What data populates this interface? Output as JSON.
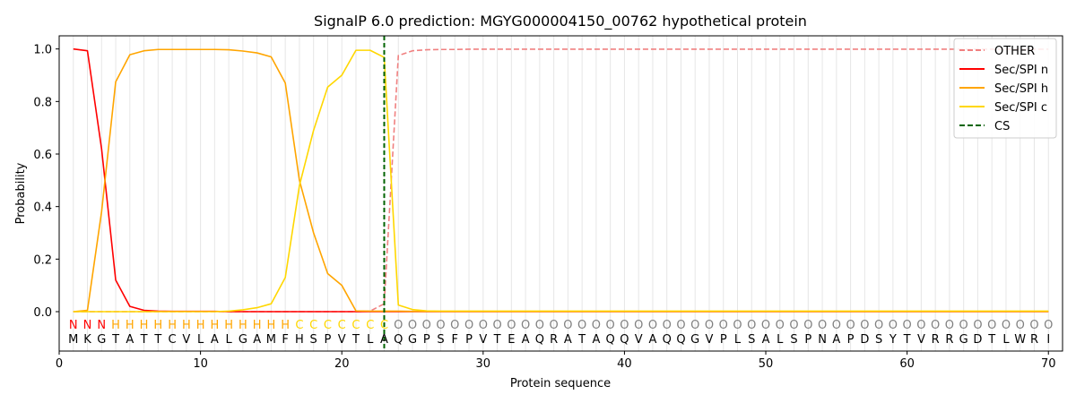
{
  "chart_data": {
    "type": "line",
    "title": "SignalP 6.0 prediction: MGYG000004150_00762 hypothetical protein",
    "xlabel": "Protein sequence",
    "ylabel": "Probability",
    "xlim": [
      0,
      71
    ],
    "ylim": [
      -0.15,
      1.05
    ],
    "xticks": [
      0,
      10,
      20,
      30,
      40,
      50,
      60,
      70
    ],
    "yticks": [
      0.0,
      0.2,
      0.4,
      0.6,
      0.8,
      1.0
    ],
    "grid": "vertical lines at each residue",
    "legend_position": "top-right",
    "sequence": [
      "M",
      "K",
      "G",
      "T",
      "A",
      "T",
      "T",
      "C",
      "V",
      "L",
      "A",
      "L",
      "G",
      "A",
      "M",
      "F",
      "H",
      "S",
      "P",
      "V",
      "T",
      "L",
      "A",
      "Q",
      "G",
      "P",
      "S",
      "F",
      "P",
      "V",
      "T",
      "E",
      "A",
      "Q",
      "R",
      "A",
      "T",
      "A",
      "Q",
      "Q",
      "V",
      "A",
      "Q",
      "Q",
      "G",
      "V",
      "P",
      "L",
      "S",
      "A",
      "L",
      "S",
      "P",
      "N",
      "A",
      "P",
      "D",
      "S",
      "Y",
      "T",
      "V",
      "R",
      "R",
      "G",
      "D",
      "T",
      "L",
      "W",
      "R",
      "I"
    ],
    "predicted_labels": [
      "N",
      "N",
      "N",
      "H",
      "H",
      "H",
      "H",
      "H",
      "H",
      "H",
      "H",
      "H",
      "H",
      "H",
      "H",
      "H",
      "C",
      "C",
      "C",
      "C",
      "C",
      "C",
      "C",
      "O",
      "O",
      "O",
      "O",
      "O",
      "O",
      "O",
      "O",
      "O",
      "O",
      "O",
      "O",
      "O",
      "O",
      "O",
      "O",
      "O",
      "O",
      "O",
      "O",
      "O",
      "O",
      "O",
      "O",
      "O",
      "O",
      "O",
      "O",
      "O",
      "O",
      "O",
      "O",
      "O",
      "O",
      "O",
      "O",
      "O",
      "O",
      "O",
      "O",
      "O",
      "O",
      "O",
      "O",
      "O",
      "O",
      "O"
    ],
    "label_colors": {
      "N": "#ff0000",
      "H": "#ffa500",
      "C": "#ffd700",
      "O": "#808080"
    },
    "cleavage_site": 23,
    "series": [
      {
        "name": "OTHER",
        "color": "#f08080",
        "dash": true,
        "values": [
          0,
          0,
          0,
          0,
          0,
          0,
          0,
          0,
          0,
          0,
          0,
          0,
          0,
          0,
          0,
          0,
          0,
          0,
          0,
          0,
          0,
          0.002,
          0.03,
          0.975,
          0.993,
          0.997,
          0.998,
          0.998,
          0.999,
          0.999,
          0.999,
          0.999,
          0.999,
          0.999,
          0.999,
          0.999,
          0.999,
          0.999,
          0.999,
          0.999,
          0.999,
          0.999,
          0.999,
          0.999,
          0.999,
          0.999,
          0.999,
          0.999,
          0.999,
          0.999,
          0.999,
          0.999,
          0.999,
          0.999,
          0.999,
          0.999,
          0.999,
          0.999,
          0.999,
          0.999,
          0.999,
          0.999,
          0.999,
          0.999,
          0.999,
          0.999,
          0.999,
          0.999,
          0.999,
          0.999
        ]
      },
      {
        "name": "Sec/SPI n",
        "color": "#ff0000",
        "dash": false,
        "values": [
          1.0,
          0.993,
          0.62,
          0.12,
          0.02,
          0.005,
          0.002,
          0.001,
          0.001,
          0.001,
          0.001,
          0,
          0,
          0,
          0,
          0,
          0,
          0,
          0,
          0,
          0,
          0,
          0,
          0,
          0,
          0,
          0,
          0,
          0,
          0,
          0,
          0,
          0,
          0,
          0,
          0,
          0,
          0,
          0,
          0,
          0,
          0,
          0,
          0,
          0,
          0,
          0,
          0,
          0,
          0,
          0,
          0,
          0,
          0,
          0,
          0,
          0,
          0,
          0,
          0,
          0,
          0,
          0,
          0,
          0,
          0,
          0,
          0,
          0,
          0
        ]
      },
      {
        "name": "Sec/SPI h",
        "color": "#ffa500",
        "dash": false,
        "values": [
          0,
          0.005,
          0.38,
          0.875,
          0.978,
          0.993,
          0.998,
          0.998,
          0.998,
          0.998,
          0.998,
          0.997,
          0.992,
          0.985,
          0.97,
          0.87,
          0.5,
          0.3,
          0.145,
          0.1,
          0.003,
          0.002,
          0.002,
          0.002,
          0.001,
          0.001,
          0.001,
          0.001,
          0.001,
          0.001,
          0.001,
          0.001,
          0.001,
          0.001,
          0.001,
          0.001,
          0.001,
          0.001,
          0.001,
          0.001,
          0.001,
          0.001,
          0.001,
          0.001,
          0.001,
          0.001,
          0.001,
          0.001,
          0.001,
          0.001,
          0.001,
          0.001,
          0.001,
          0.001,
          0.001,
          0.001,
          0.001,
          0.001,
          0.001,
          0.001,
          0.001,
          0.001,
          0.001,
          0.001,
          0.001,
          0.001,
          0.001,
          0.001,
          0.001,
          0.001
        ]
      },
      {
        "name": "Sec/SPI c",
        "color": "#ffd700",
        "dash": false,
        "values": [
          0,
          0,
          0,
          0,
          0,
          0,
          0,
          0,
          0,
          0,
          0,
          0.002,
          0.007,
          0.015,
          0.03,
          0.13,
          0.48,
          0.69,
          0.855,
          0.9,
          0.995,
          0.995,
          0.968,
          0.025,
          0.008,
          0.003,
          0.002,
          0.002,
          0.002,
          0.002,
          0.002,
          0.002,
          0.002,
          0.002,
          0.002,
          0.002,
          0.002,
          0.002,
          0.002,
          0.002,
          0.002,
          0.002,
          0.002,
          0.002,
          0.002,
          0.002,
          0.002,
          0.002,
          0.002,
          0.002,
          0.002,
          0.002,
          0.002,
          0.002,
          0.002,
          0.002,
          0.002,
          0.002,
          0.002,
          0.002,
          0.002,
          0.002,
          0.002,
          0.002,
          0.002,
          0.002,
          0.002,
          0.002,
          0.002,
          0.002
        ]
      }
    ],
    "legend": [
      {
        "label": "OTHER",
        "color": "#f08080",
        "dash": true
      },
      {
        "label": "Sec/SPI n",
        "color": "#ff0000",
        "dash": false
      },
      {
        "label": "Sec/SPI h",
        "color": "#ffa500",
        "dash": false
      },
      {
        "label": "Sec/SPI c",
        "color": "#ffd700",
        "dash": false
      },
      {
        "label": "CS",
        "color": "#006400",
        "dash": true
      }
    ]
  }
}
